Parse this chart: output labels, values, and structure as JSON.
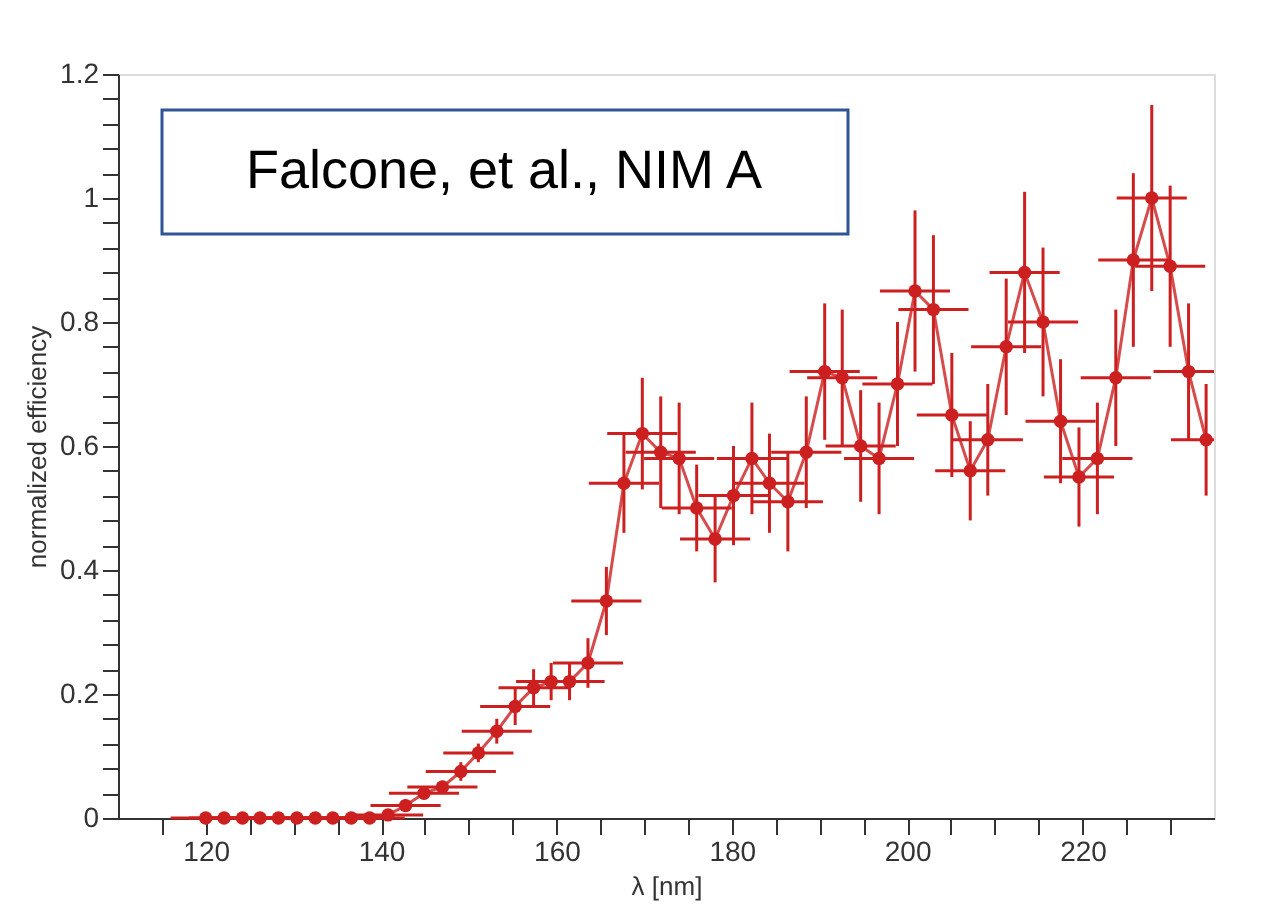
{
  "chart_data": {
    "type": "line",
    "xlabel": "λ [nm]",
    "ylabel": "normalized efficiency",
    "annotations": [
      "Falcone, et al., NIM A"
    ],
    "x": [
      120,
      122.1,
      124.2,
      126.2,
      128.3,
      130.4,
      132.5,
      134.5,
      136.6,
      138.7,
      140.8,
      142.8,
      144.9,
      147,
      149.1,
      151.1,
      153.2,
      155.3,
      157.4,
      159.4,
      161.5,
      163.6,
      165.7,
      167.7,
      169.8,
      171.9,
      174,
      176,
      178.1,
      180.2,
      182.3,
      184.3,
      186.4,
      188.5,
      190.6,
      192.6,
      194.7,
      196.8,
      198.9,
      200.9,
      203,
      205.1,
      207.2,
      209.2,
      211.3,
      213.4,
      215.5,
      217.5,
      219.6,
      221.7,
      223.8,
      225.8,
      227.9,
      230,
      232.1,
      234.1
    ],
    "series": [
      {
        "color": "#cc1f1f",
        "values": [
          0,
          0,
          0,
          0,
          0,
          0,
          0,
          0,
          0,
          0,
          0.005,
          0.02,
          0.04,
          0.05,
          0.075,
          0.105,
          0.14,
          0.18,
          0.21,
          0.22,
          0.22,
          0.25,
          0.35,
          0.54,
          0.62,
          0.59,
          0.58,
          0.5,
          0.45,
          0.52,
          0.58,
          0.54,
          0.51,
          0.59,
          0.72,
          0.71,
          0.6,
          0.58,
          0.7,
          0.85,
          0.82,
          0.65,
          0.56,
          0.61,
          0.76,
          0.88,
          0.8,
          0.64,
          0.55,
          0.58,
          0.71,
          0.9,
          1.0,
          0.89,
          0.72,
          0.61
        ],
        "errors": [
          null,
          null,
          null,
          null,
          null,
          null,
          null,
          null,
          null,
          null,
          0.005,
          0.01,
          0.01,
          0.01,
          0.015,
          0.015,
          0.02,
          0.03,
          0.03,
          0.03,
          0.03,
          0.04,
          0.055,
          0.08,
          0.09,
          0.09,
          0.09,
          0.07,
          0.07,
          0.08,
          0.09,
          0.08,
          0.08,
          0.09,
          0.11,
          0.11,
          0.09,
          0.09,
          0.1,
          0.13,
          0.12,
          0.1,
          0.08,
          0.09,
          0.11,
          0.13,
          0.12,
          0.1,
          0.08,
          0.09,
          0.11,
          0.14,
          0.15,
          0.13,
          0.11,
          0.09
        ],
        "xerrors": [
          4,
          4,
          4,
          4,
          4,
          4,
          4,
          4,
          4,
          4,
          4,
          4,
          4,
          4,
          4,
          4,
          4,
          4,
          4,
          4,
          4,
          4,
          4,
          4,
          4,
          4,
          4,
          4,
          4,
          4,
          4,
          4,
          4,
          4,
          4,
          4,
          4,
          4,
          4,
          4,
          4,
          4,
          4,
          4,
          4,
          4,
          4,
          4,
          4,
          4,
          4,
          4,
          4,
          4,
          [
            228.1,
            235
          ],
          [
            230.1,
            235
          ]
        ]
      }
    ],
    "xlim": [
      110,
      235
    ],
    "ylim": [
      0,
      1.2
    ],
    "xticks": [
      {
        "value": 115,
        "label": null
      },
      120,
      {
        "value": 125,
        "label": null
      },
      {
        "value": 130,
        "label": null
      },
      {
        "value": 135,
        "label": null
      },
      140,
      {
        "value": 145,
        "label": null
      },
      {
        "value": 150,
        "label": null
      },
      {
        "value": 155,
        "label": null
      },
      160,
      {
        "value": 165,
        "label": null
      },
      {
        "value": 170,
        "label": null
      },
      {
        "value": 175,
        "label": null
      },
      180,
      {
        "value": 185,
        "label": null
      },
      {
        "value": 190,
        "label": null
      },
      {
        "value": 195,
        "label": null
      },
      200,
      {
        "value": 205,
        "label": null
      },
      {
        "value": 210,
        "label": null
      },
      {
        "value": 215,
        "label": null
      },
      220,
      {
        "value": 225,
        "label": null
      },
      {
        "value": 230,
        "label": null
      }
    ],
    "yticks": [
      0,
      {
        "value": 0.04,
        "label": null
      },
      {
        "value": 0.08,
        "label": null
      },
      {
        "value": 0.12,
        "label": null
      },
      {
        "value": 0.16,
        "label": null
      },
      0.2,
      {
        "value": 0.24,
        "label": null
      },
      {
        "value": 0.28,
        "label": null
      },
      {
        "value": 0.32,
        "label": null
      },
      {
        "value": 0.36,
        "label": null
      },
      0.4,
      {
        "value": 0.44,
        "label": null
      },
      {
        "value": 0.48,
        "label": null
      },
      {
        "value": 0.52,
        "label": null
      },
      {
        "value": 0.56,
        "label": null
      },
      0.6,
      {
        "value": 0.64,
        "label": null
      },
      {
        "value": 0.68,
        "label": null
      },
      {
        "value": 0.72,
        "label": null
      },
      {
        "value": 0.76,
        "label": null
      },
      0.8,
      {
        "value": 0.84,
        "label": null
      },
      {
        "value": 0.88,
        "label": null
      },
      {
        "value": 0.92,
        "label": null
      },
      {
        "value": 0.96,
        "label": null
      },
      1,
      {
        "value": 1.04,
        "label": null
      },
      {
        "value": 1.08,
        "label": null
      },
      {
        "value": 1.12,
        "label": null
      },
      {
        "value": 1.16,
        "label": null
      },
      1.2
    ],
    "grid": false,
    "marker": "circle",
    "line_style": "solid"
  }
}
